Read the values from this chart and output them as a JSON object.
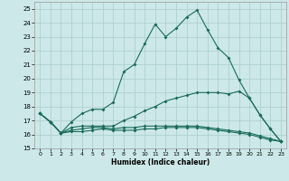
{
  "xlabel": "Humidex (Indice chaleur)",
  "xlim": [
    -0.5,
    23.5
  ],
  "ylim": [
    15,
    25.5
  ],
  "yticks": [
    15,
    16,
    17,
    18,
    19,
    20,
    21,
    22,
    23,
    24,
    25
  ],
  "xticks": [
    0,
    1,
    2,
    3,
    4,
    5,
    6,
    7,
    8,
    9,
    10,
    11,
    12,
    13,
    14,
    15,
    16,
    17,
    18,
    19,
    20,
    21,
    22,
    23
  ],
  "bg_color": "#cce8e8",
  "grid_color": "#aacccc",
  "line_color": "#1a6b5a",
  "line1_y": [
    17.5,
    16.9,
    16.1,
    16.9,
    17.5,
    17.8,
    17.8,
    18.3,
    20.5,
    21.0,
    22.5,
    23.9,
    23.0,
    23.6,
    24.4,
    24.9,
    23.5,
    22.2,
    21.5,
    19.9,
    18.6,
    17.4,
    16.4,
    15.5
  ],
  "line2_y": [
    17.5,
    16.9,
    16.1,
    16.5,
    16.6,
    16.6,
    16.6,
    16.6,
    17.0,
    17.3,
    17.7,
    18.0,
    18.4,
    18.6,
    18.8,
    19.0,
    19.0,
    19.0,
    18.9,
    19.1,
    18.6,
    17.4,
    16.4,
    15.5
  ],
  "line3_y": [
    17.5,
    16.9,
    16.1,
    16.3,
    16.4,
    16.5,
    16.5,
    16.4,
    16.5,
    16.5,
    16.6,
    16.6,
    16.6,
    16.6,
    16.6,
    16.6,
    16.5,
    16.4,
    16.3,
    16.2,
    16.1,
    15.9,
    15.7,
    15.5
  ],
  "line4_y": [
    17.5,
    16.9,
    16.1,
    16.2,
    16.2,
    16.3,
    16.4,
    16.3,
    16.3,
    16.3,
    16.4,
    16.4,
    16.5,
    16.5,
    16.5,
    16.5,
    16.4,
    16.3,
    16.2,
    16.1,
    16.0,
    15.8,
    15.6,
    15.5
  ]
}
